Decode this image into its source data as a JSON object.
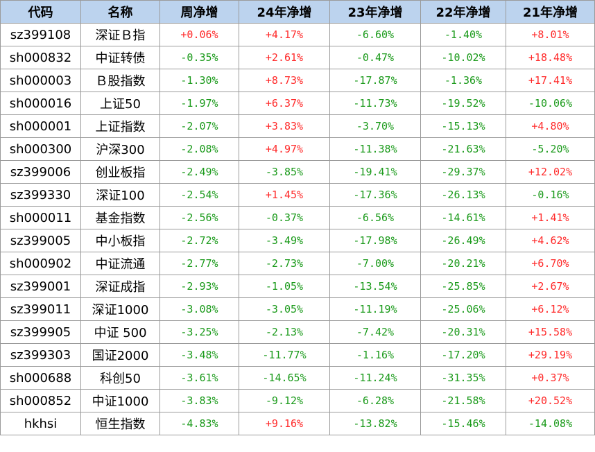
{
  "colors": {
    "header_bg": "#bcd3ee",
    "positive": "#ff2a2a",
    "negative": "#1a9a1a",
    "border": "#9a9a9a"
  },
  "table": {
    "headers": [
      "代码",
      "名称",
      "周净增",
      "24年净增",
      "23年净增",
      "22年净增",
      "21年净增"
    ],
    "rows": [
      [
        "sz399108",
        "深证Ｂ指",
        "+0.06%",
        "+4.17%",
        "-6.60%",
        "-1.40%",
        "+8.01%"
      ],
      [
        "sh000832",
        "中证转债",
        "-0.35%",
        "+2.61%",
        "-0.47%",
        "-10.02%",
        "+18.48%"
      ],
      [
        "sh000003",
        "Ｂ股指数",
        "-1.30%",
        "+8.73%",
        "-17.87%",
        "-1.36%",
        "+17.41%"
      ],
      [
        "sh000016",
        "上证50",
        "-1.97%",
        "+6.37%",
        "-11.73%",
        "-19.52%",
        "-10.06%"
      ],
      [
        "sh000001",
        "上证指数",
        "-2.07%",
        "+3.83%",
        "-3.70%",
        "-15.13%",
        "+4.80%"
      ],
      [
        "sh000300",
        "沪深300",
        "-2.08%",
        "+4.97%",
        "-11.38%",
        "-21.63%",
        "-5.20%"
      ],
      [
        "sz399006",
        "创业板指",
        "-2.49%",
        "-3.85%",
        "-19.41%",
        "-29.37%",
        "+12.02%"
      ],
      [
        "sz399330",
        "深证100",
        "-2.54%",
        "+1.45%",
        "-17.36%",
        "-26.13%",
        "-0.16%"
      ],
      [
        "sh000011",
        "基金指数",
        "-2.56%",
        "-0.37%",
        "-6.56%",
        "-14.61%",
        "+1.41%"
      ],
      [
        "sz399005",
        "中小板指",
        "-2.72%",
        "-3.49%",
        "-17.98%",
        "-26.49%",
        "+4.62%"
      ],
      [
        "sh000902",
        "中证流通",
        "-2.77%",
        "-2.73%",
        "-7.00%",
        "-20.21%",
        "+6.70%"
      ],
      [
        "sz399001",
        "深证成指",
        "-2.93%",
        "-1.05%",
        "-13.54%",
        "-25.85%",
        "+2.67%"
      ],
      [
        "sz399011",
        "深证1000",
        "-3.08%",
        "-3.05%",
        "-11.19%",
        "-25.06%",
        "+6.12%"
      ],
      [
        "sz399905",
        "中证 500",
        "-3.25%",
        "-2.13%",
        "-7.42%",
        "-20.31%",
        "+15.58%"
      ],
      [
        "sz399303",
        "国证2000",
        "-3.48%",
        "-11.77%",
        "-1.16%",
        "-17.20%",
        "+29.19%"
      ],
      [
        "sh000688",
        "科创50",
        "-3.61%",
        "-14.65%",
        "-11.24%",
        "-31.35%",
        "+0.37%"
      ],
      [
        "sh000852",
        "中证1000",
        "-3.83%",
        "-9.12%",
        "-6.28%",
        "-21.58%",
        "+20.52%"
      ],
      [
        "hkhsi",
        "恒生指数",
        "-4.83%",
        "+9.16%",
        "-13.82%",
        "-15.46%",
        "-14.08%"
      ]
    ]
  }
}
